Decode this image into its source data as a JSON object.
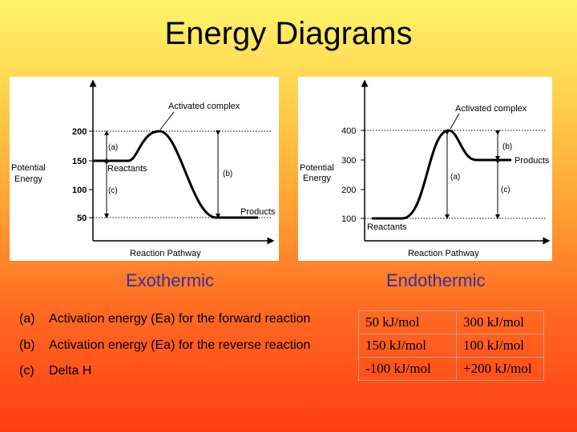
{
  "slide": {
    "title": "Energy Diagrams",
    "exothermic_label": "Exothermic",
    "endothermic_label": "Endothermic"
  },
  "exothermic_diagram": {
    "ylabel_line1": "Potential",
    "ylabel_line2": "Energy",
    "xlabel": "Reaction Pathway",
    "ticks": [
      "200",
      "150",
      "100",
      "50"
    ],
    "activated_complex": "Activated complex",
    "reactants": "Reactants",
    "products": "Products",
    "marker_a": "(a)",
    "marker_b": "(b)",
    "marker_c": "(c)"
  },
  "endothermic_diagram": {
    "ylabel_line1": "Potential",
    "ylabel_line2": "Energy",
    "xlabel": "Reaction Pathway",
    "ticks": [
      "400",
      "300",
      "200",
      "100"
    ],
    "activated_complex": "Activated complex",
    "reactants": "Reactants",
    "products": "Products",
    "marker_a": "(a)",
    "marker_b": "(b)",
    "marker_c": "(c)"
  },
  "rows": [
    {
      "letter": "(a)",
      "text": "Activation energy (Ea) for the forward reaction",
      "exothermic": "50 kJ/mol",
      "endothermic": "300 kJ/mol"
    },
    {
      "letter": "(b)",
      "text": "Activation energy (Ea) for the reverse reaction",
      "exothermic": "150 kJ/mol",
      "endothermic": "100 kJ/mol"
    },
    {
      "letter": "(c)",
      "text": "Delta H",
      "exothermic": "-100 kJ/mol",
      "endothermic": "+200 kJ/mol"
    }
  ]
}
